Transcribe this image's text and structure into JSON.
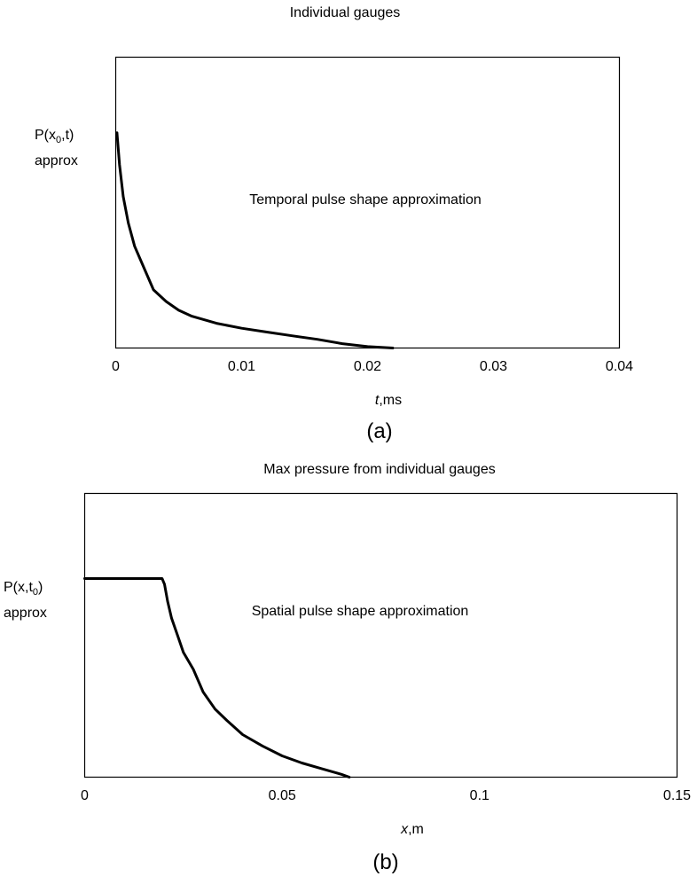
{
  "chart_data": [
    {
      "type": "line",
      "panel_label": "(a)",
      "title": "Individual gauges",
      "xlabel_italic": "t",
      "xlabel_rest": ",ms",
      "ylabel_line1_pre": "P(x",
      "ylabel_line1_sub": "0",
      "ylabel_line1_post": ",t)",
      "ylabel_line2": "approx",
      "annotation": "Temporal pulse shape approximation",
      "xlim": [
        0,
        0.04
      ],
      "ylim": [
        0,
        1
      ],
      "xticks": [
        0,
        0.01,
        0.02,
        0.03,
        0.04
      ],
      "xtick_labels": [
        "0",
        "0.01",
        "0.02",
        "0.03",
        "0.04"
      ],
      "y_ticks_shown": false,
      "grid": false,
      "series": [
        {
          "x": [
            0.0001,
            0.0003,
            0.0006,
            0.001,
            0.0015,
            0.002,
            0.0025,
            0.003,
            0.004,
            0.005,
            0.006,
            0.008,
            0.01,
            0.012,
            0.014,
            0.016,
            0.018,
            0.02,
            0.022
          ],
          "y": [
            0.74,
            0.63,
            0.52,
            0.43,
            0.35,
            0.3,
            0.25,
            0.2,
            0.16,
            0.13,
            0.11,
            0.085,
            0.068,
            0.055,
            0.042,
            0.03,
            0.015,
            0.005,
            0.0
          ]
        }
      ]
    },
    {
      "type": "line",
      "panel_label": "(b)",
      "title": "Max pressure from individual gauges",
      "xlabel_italic": "x",
      "xlabel_rest": ",m",
      "ylabel_line1_pre": "P(x,t",
      "ylabel_line1_sub": "0",
      "ylabel_line1_post": ")",
      "ylabel_line2": "approx",
      "annotation": "Spatial pulse shape approximation",
      "xlim": [
        0,
        0.15
      ],
      "ylim": [
        0,
        1
      ],
      "xticks": [
        0,
        0.05,
        0.1,
        0.15
      ],
      "xtick_labels": [
        "0",
        "0.05",
        "0.1",
        "0.15"
      ],
      "y_ticks_shown": false,
      "grid": false,
      "series": [
        {
          "x": [
            0,
            0.0196,
            0.0202,
            0.021,
            0.022,
            0.0235,
            0.025,
            0.0275,
            0.03,
            0.033,
            0.036,
            0.04,
            0.045,
            0.05,
            0.055,
            0.06,
            0.065,
            0.067
          ],
          "y": [
            0.7,
            0.7,
            0.68,
            0.62,
            0.56,
            0.5,
            0.44,
            0.38,
            0.3,
            0.24,
            0.2,
            0.15,
            0.11,
            0.075,
            0.05,
            0.03,
            0.01,
            0.0
          ]
        }
      ]
    }
  ]
}
